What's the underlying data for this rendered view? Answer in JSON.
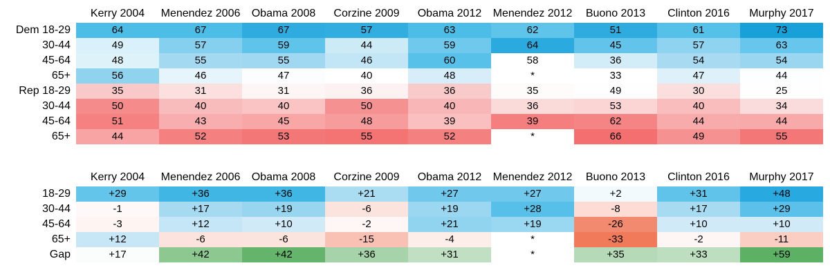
{
  "chart_data": [
    {
      "type": "heatmap",
      "columns": [
        "Kerry 2004",
        "Menendez 2006",
        "Obama 2008",
        "Corzine 2009",
        "Obama 2012",
        "Menendez 2012",
        "Buono 2013",
        "Clinton 2016",
        "Murphy 2017"
      ],
      "rows": [
        {
          "label": "Dem 18-29",
          "values": [
            "64",
            "67",
            "67",
            "57",
            "63",
            "62",
            "51",
            "61",
            "73"
          ],
          "colors": [
            "#4cbde7",
            "#4cbde7",
            "#2eabdf",
            "#31ade0",
            "#4cbde7",
            "#5ec4ea",
            "#2eabdf",
            "#55c0e8",
            "#18a1d9"
          ]
        },
        {
          "label": "30-44",
          "values": [
            "49",
            "57",
            "59",
            "44",
            "59",
            "64",
            "45",
            "57",
            "63"
          ],
          "colors": [
            "#daf0fa",
            "#85d0ee",
            "#5ec4ea",
            "#cdeaf7",
            "#6fc9ec",
            "#2aaade",
            "#62c4ea",
            "#8ed3ef",
            "#66c6eb"
          ]
        },
        {
          "label": "45-64",
          "values": [
            "48",
            "55",
            "55",
            "46",
            "60",
            "58",
            "36",
            "54",
            "54"
          ],
          "colors": [
            "#def2fa",
            "#a4daf1",
            "#9fd8f0",
            "#c2e6f6",
            "#58c1e9",
            "#ffffff",
            "#d2ecf8",
            "#a8dbf1",
            "#9bd6f0"
          ]
        },
        {
          "label": "65+",
          "values": [
            "56",
            "46",
            "47",
            "40",
            "48",
            "*",
            "33",
            "47",
            "44"
          ],
          "colors": [
            "#90d3ef",
            "#e6f5fb",
            "#fbfdfe",
            "#ffffff",
            "#d7eefa",
            "#ffffff",
            "#ffffff",
            "#def1fa",
            "#fdfeff"
          ]
        },
        {
          "label": "Rep 18-29",
          "values": [
            "35",
            "31",
            "31",
            "36",
            "36",
            "35",
            "49",
            "30",
            "25"
          ],
          "colors": [
            "#f9c8c8",
            "#fcdfdf",
            "#fef6f6",
            "#fdf2f2",
            "#f9caca",
            "#fefbfb",
            "#fefefe",
            "#fbdfdf",
            "#fefefe"
          ]
        },
        {
          "label": "30-44",
          "values": [
            "50",
            "40",
            "40",
            "50",
            "40",
            "36",
            "53",
            "40",
            "34"
          ],
          "colors": [
            "#f58b8b",
            "#f9bcbc",
            "#fac4c4",
            "#f69191",
            "#f9b6b6",
            "#fbdada",
            "#fbd4d4",
            "#f9bdbd",
            "#fbdcdc"
          ]
        },
        {
          "label": "45-64",
          "values": [
            "51",
            "43",
            "45",
            "48",
            "39",
            "39",
            "62",
            "44",
            "44"
          ],
          "colors": [
            "#f58181",
            "#f8aeae",
            "#f8a6a6",
            "#f79c9c",
            "#fabfbf",
            "#f57e7e",
            "#f58585",
            "#f8abab",
            "#f8a9a9"
          ]
        },
        {
          "label": "65+",
          "values": [
            "44",
            "52",
            "53",
            "55",
            "52",
            "*",
            "66",
            "49",
            "55"
          ],
          "colors": [
            "#f8a4a4",
            "#f58080",
            "#f47777",
            "#f47373",
            "#f58080",
            "#ffffff",
            "#f46f6f",
            "#f69191",
            "#f47777"
          ]
        }
      ]
    },
    {
      "type": "heatmap",
      "columns": [
        "Kerry 2004",
        "Menendez 2006",
        "Obama 2008",
        "Corzine 2009",
        "Obama 2012",
        "Menendez 2012",
        "Buono 2013",
        "Clinton 2016",
        "Murphy 2017"
      ],
      "rows": [
        {
          "label": "18-29",
          "values": [
            "+29",
            "+36",
            "+36",
            "+21",
            "+27",
            "+27",
            "+2",
            "+31",
            "+48"
          ],
          "colors": [
            "#64c5ea",
            "#40b6e4",
            "#40b6e4",
            "#aaddf2",
            "#70c9ec",
            "#70c9ec",
            "#f2fafd",
            "#60c3ea",
            "#28a9df"
          ]
        },
        {
          "label": "30-44",
          "values": [
            "-1",
            "+17",
            "+19",
            "-6",
            "+19",
            "+28",
            "-8",
            "+17",
            "+29"
          ],
          "colors": [
            "#fef9f8",
            "#a5daf1",
            "#98d6f0",
            "#fce4de",
            "#9bd7f0",
            "#57c0e9",
            "#fcdcd5",
            "#a7dbf1",
            "#5bc1ea"
          ]
        },
        {
          "label": "45-64",
          "values": [
            "-3",
            "+12",
            "+10",
            "-2",
            "+21",
            "+19",
            "-26",
            "+10",
            "+10"
          ],
          "colors": [
            "#fef4f2",
            "#c4e6f6",
            "#d0eaf8",
            "#fef7f5",
            "#90d4ef",
            "#9ad7f0",
            "#f28a70",
            "#d0eaf8",
            "#d0eaf8"
          ]
        },
        {
          "label": "65+",
          "values": [
            "+12",
            "-6",
            "-6",
            "-15",
            "-4",
            "*",
            "-33",
            "-2",
            "-11"
          ],
          "colors": [
            "#c7e7f6",
            "#fce3dd",
            "#fce4de",
            "#f9c1b3",
            "#fdeeea",
            "#ffffff",
            "#f17a5b",
            "#fef6f4",
            "#fbcec3"
          ]
        },
        {
          "label": "Gap",
          "values": [
            "+17",
            "+42",
            "+42",
            "+36",
            "+31",
            "*",
            "+35",
            "+33",
            "+59"
          ],
          "colors": [
            "#fbfdfc",
            "#8dc890",
            "#64b56b",
            "#a6d3a9",
            "#c1e0c3",
            "#ffffff",
            "#b6dab8",
            "#bddebf",
            "#5cb164"
          ]
        }
      ]
    }
  ]
}
